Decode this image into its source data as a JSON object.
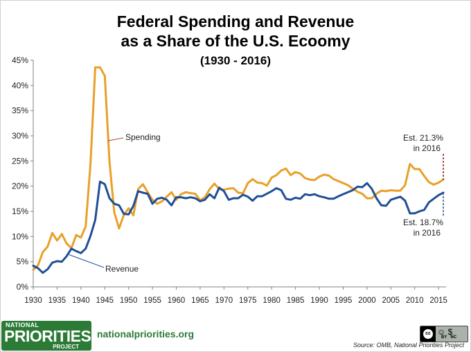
{
  "header": {
    "title_line1": "Federal Spending and Revenue",
    "title_line2": "as a Share of the U.S. Ecoomy",
    "subtitle": "(1930 - 2016)"
  },
  "footer": {
    "logo_top": "NATIONAL",
    "logo_main": "PRIORITIES",
    "logo_bottom": "PROJECT",
    "website": "nationalpriorities.org",
    "source": "Source: OMB, National Priorities Project",
    "license_mark": "cc",
    "license_by": "BY",
    "license_nc": "NC"
  },
  "chart_data": {
    "type": "line",
    "title": "Federal Spending and Revenue as a Share of the U.S. Ecoomy",
    "subtitle": "(1930 - 2016)",
    "xlim": [
      1930,
      2016
    ],
    "ylim": [
      0,
      45
    ],
    "x_ticks": [
      1930,
      1935,
      1940,
      1945,
      1950,
      1955,
      1960,
      1965,
      1970,
      1975,
      1980,
      1985,
      1990,
      1995,
      2000,
      2005,
      2010,
      2015
    ],
    "y_ticks": [
      "0%",
      "5%",
      "10%",
      "15%",
      "20%",
      "25%",
      "30%",
      "35%",
      "40%",
      "45%"
    ],
    "grid": false,
    "legend": "inline labels",
    "series": [
      {
        "name": "Spending",
        "color": "#e8a028",
        "x": [
          1930,
          1931,
          1932,
          1933,
          1934,
          1935,
          1936,
          1937,
          1938,
          1939,
          1940,
          1941,
          1942,
          1943,
          1944,
          1945,
          1946,
          1947,
          1948,
          1949,
          1950,
          1951,
          1952,
          1953,
          1954,
          1955,
          1956,
          1957,
          1958,
          1959,
          1960,
          1961,
          1962,
          1963,
          1964,
          1965,
          1966,
          1967,
          1968,
          1969,
          1970,
          1971,
          1972,
          1973,
          1974,
          1975,
          1976,
          1977,
          1978,
          1979,
          1980,
          1981,
          1982,
          1983,
          1984,
          1985,
          1986,
          1987,
          1988,
          1989,
          1990,
          1991,
          1992,
          1993,
          1994,
          1995,
          1996,
          1997,
          1998,
          1999,
          2000,
          2001,
          2002,
          2003,
          2004,
          2005,
          2006,
          2007,
          2008,
          2009,
          2010,
          2011,
          2012,
          2013,
          2014,
          2015,
          2016
        ],
        "y": [
          3.4,
          4.3,
          6.9,
          8.0,
          10.7,
          9.2,
          10.5,
          8.6,
          7.7,
          10.3,
          9.8,
          12.0,
          24.3,
          43.6,
          43.6,
          41.9,
          24.8,
          14.8,
          11.6,
          14.3,
          15.6,
          14.2,
          19.4,
          20.4,
          18.8,
          17.3,
          16.5,
          17.0,
          17.9,
          18.8,
          17.3,
          18.4,
          18.8,
          18.6,
          18.5,
          17.2,
          17.8,
          19.4,
          20.5,
          19.4,
          19.3,
          19.5,
          19.6,
          18.7,
          18.6,
          20.6,
          21.4,
          20.7,
          20.6,
          20.1,
          21.7,
          22.2,
          23.1,
          23.5,
          22.2,
          22.8,
          22.5,
          21.6,
          21.3,
          21.2,
          21.9,
          22.3,
          22.1,
          21.4,
          21.0,
          20.6,
          20.2,
          19.5,
          18.9,
          18.5,
          17.6,
          17.6,
          18.5,
          19.1,
          19.0,
          19.2,
          19.1,
          19.1,
          20.2,
          24.4,
          23.4,
          23.4,
          22.0,
          20.8,
          20.3,
          20.7,
          21.3
        ]
      },
      {
        "name": "Revenue",
        "color": "#1f4e96",
        "x": [
          1930,
          1931,
          1932,
          1933,
          1934,
          1935,
          1936,
          1937,
          1938,
          1939,
          1940,
          1941,
          1942,
          1943,
          1944,
          1945,
          1946,
          1947,
          1948,
          1949,
          1950,
          1951,
          1952,
          1953,
          1954,
          1955,
          1956,
          1957,
          1958,
          1959,
          1960,
          1961,
          1962,
          1963,
          1964,
          1965,
          1966,
          1967,
          1968,
          1969,
          1970,
          1971,
          1972,
          1973,
          1974,
          1975,
          1976,
          1977,
          1978,
          1979,
          1980,
          1981,
          1982,
          1983,
          1984,
          1985,
          1986,
          1987,
          1988,
          1989,
          1990,
          1991,
          1992,
          1993,
          1994,
          1995,
          1996,
          1997,
          1998,
          1999,
          2000,
          2001,
          2002,
          2003,
          2004,
          2005,
          2006,
          2007,
          2008,
          2009,
          2010,
          2011,
          2012,
          2013,
          2014,
          2015,
          2016
        ],
        "y": [
          4.2,
          3.7,
          2.8,
          3.5,
          4.8,
          5.1,
          5.0,
          6.1,
          7.6,
          7.1,
          6.7,
          7.6,
          10.1,
          13.3,
          20.9,
          20.4,
          17.6,
          16.5,
          16.2,
          14.5,
          14.4,
          16.1,
          19.0,
          18.7,
          18.5,
          16.5,
          17.5,
          17.7,
          17.3,
          16.2,
          17.8,
          17.8,
          17.6,
          17.8,
          17.6,
          17.0,
          17.3,
          18.4,
          17.6,
          19.7,
          19.0,
          17.3,
          17.6,
          17.6,
          18.3,
          17.9,
          17.1,
          18.0,
          18.0,
          18.5,
          19.0,
          19.6,
          19.2,
          17.5,
          17.3,
          17.7,
          17.5,
          18.4,
          18.2,
          18.4,
          18.0,
          17.8,
          17.5,
          17.5,
          18.0,
          18.4,
          18.8,
          19.2,
          19.9,
          19.8,
          20.6,
          19.5,
          17.6,
          16.2,
          16.1,
          17.3,
          17.6,
          17.9,
          17.1,
          14.6,
          14.6,
          15.0,
          15.3,
          16.8,
          17.5,
          18.2,
          18.7
        ]
      }
    ],
    "annotations": [
      {
        "text": "Spending",
        "x": 1948,
        "y": 30
      },
      {
        "text": "Revenue",
        "x": 1948,
        "y": 3.7
      },
      {
        "text_line1": "Est. 21.3%",
        "text_line2": "in 2016",
        "x": 2016,
        "y": 21.3
      },
      {
        "text_line1": "Est. 18.7%",
        "text_line2": "in 2016",
        "x": 2016,
        "y": 18.7
      }
    ]
  }
}
